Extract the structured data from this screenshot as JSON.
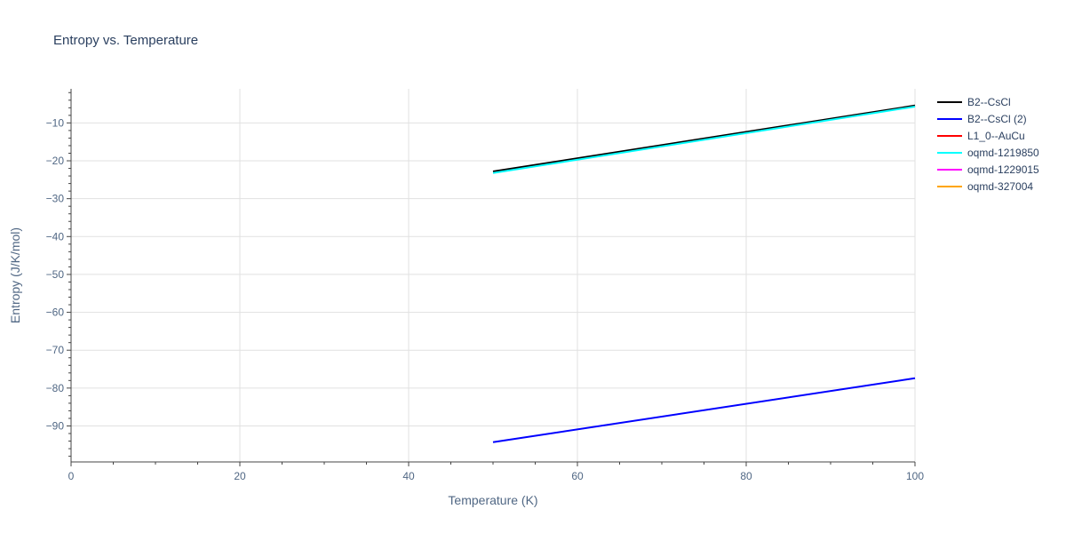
{
  "chart_data": {
    "type": "line",
    "title": "Entropy vs. Temperature",
    "xlabel": "Temperature (K)",
    "ylabel": "Entropy (J/K/mol)",
    "xlim": [
      0,
      100
    ],
    "ylim": [
      -99.5,
      -1
    ],
    "x_ticks": [
      0,
      20,
      40,
      60,
      80,
      100
    ],
    "y_ticks": [
      -10,
      -20,
      -30,
      -40,
      -50,
      -60,
      -70,
      -80,
      -90
    ],
    "grid": true,
    "legend_position": "right",
    "series": [
      {
        "name": "B2--CsCl",
        "color": "#000000",
        "x": [
          50,
          100
        ],
        "y": [
          -22.8,
          -5.4
        ]
      },
      {
        "name": "B2--CsCl (2)",
        "color": "#0000ff",
        "x": [
          50,
          100
        ],
        "y": [
          -94.3,
          -77.4
        ]
      },
      {
        "name": "L1_0--AuCu",
        "color": "#ff0000",
        "x": [],
        "y": []
      },
      {
        "name": "oqmd-1219850",
        "color": "#00ffff",
        "x": [
          50,
          100
        ],
        "y": [
          -23.2,
          -5.7
        ]
      },
      {
        "name": "oqmd-1229015",
        "color": "#ff00ff",
        "x": [],
        "y": []
      },
      {
        "name": "oqmd-327004",
        "color": "#ffa500",
        "x": [],
        "y": []
      }
    ]
  }
}
